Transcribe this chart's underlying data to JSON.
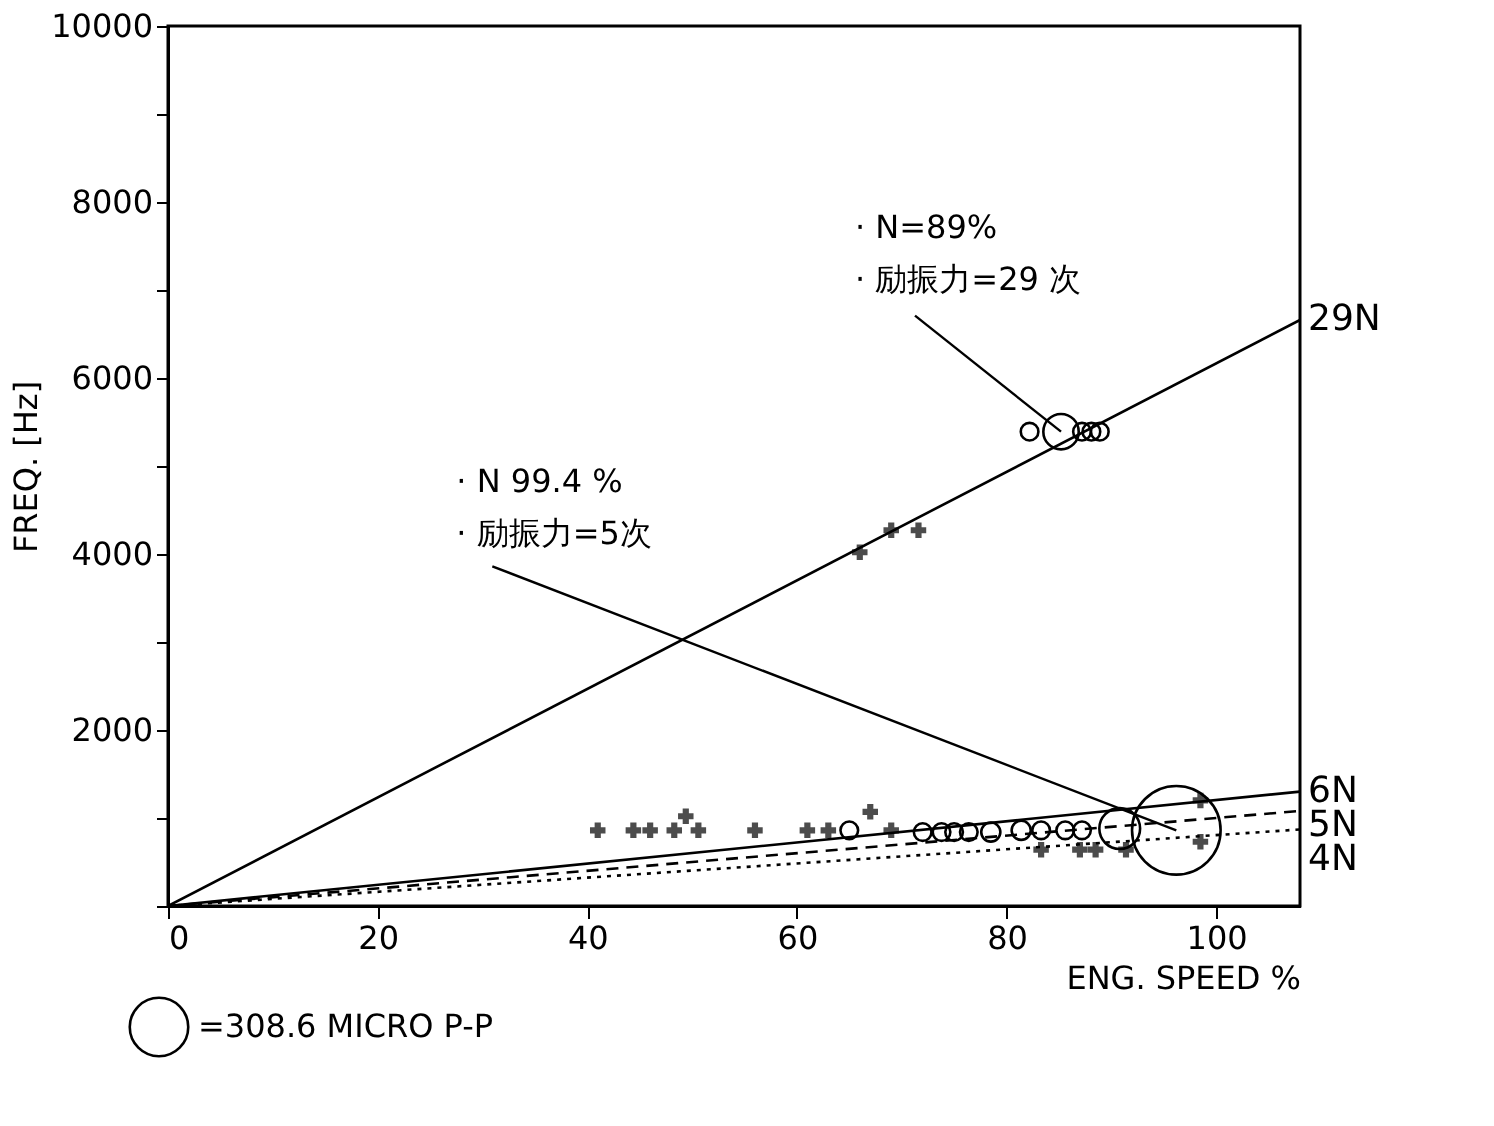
{
  "chart_data": {
    "type": "scatter",
    "xlabel": "ENG. SPEED %",
    "ylabel": "FREQ. [Hz]",
    "xlim": [
      0,
      108
    ],
    "ylim": [
      0,
      10000
    ],
    "xticks": [
      0,
      20,
      40,
      60,
      80,
      100
    ],
    "yticks": [
      {
        "value": 0,
        "label": null
      },
      {
        "value": 1000,
        "label": null
      },
      2000,
      {
        "value": 3000,
        "label": null
      },
      4000,
      {
        "value": 5000,
        "label": null
      },
      6000,
      {
        "value": 7000,
        "label": null
      },
      8000,
      {
        "value": 9000,
        "label": null
      },
      10000
    ],
    "grid": false,
    "size_legend": [
      {
        "value": 308.6,
        "label": "=308.6 MICRO P-P"
      }
    ],
    "series": [
      {
        "name": "29N",
        "type": "line",
        "color": "#000000",
        "line_style": "solid",
        "x": [
          0,
          108
        ],
        "values": [
          0,
          6660
        ]
      },
      {
        "name": "6N",
        "type": "line",
        "color": "#000000",
        "line_style": "solid",
        "x": [
          0,
          108
        ],
        "values": [
          0,
          1300
        ]
      },
      {
        "name": "5N",
        "type": "line",
        "color": "#000000",
        "line_style": "dashed",
        "x": [
          0,
          108
        ],
        "values": [
          0,
          1080
        ]
      },
      {
        "name": "4N",
        "type": "line",
        "color": "#000000",
        "line_style": "dotted",
        "x": [
          0,
          108
        ],
        "values": [
          0,
          870
        ]
      },
      {
        "marker": "cross",
        "color": "#000000",
        "x": [
          41,
          44.4,
          46,
          48.3,
          49.4,
          50.6,
          56,
          61,
          63,
          67,
          69,
          83.3,
          87,
          88.5,
          91.4,
          98.5,
          98.5,
          66,
          69,
          71.6
        ],
        "values": [
          860,
          860,
          860,
          860,
          1020,
          860,
          860,
          860,
          860,
          1070,
          860,
          640,
          640,
          640,
          640,
          730,
          1200,
          4020,
          4270,
          4270
        ]
      },
      {
        "type": "bubble",
        "marker": "circle",
        "color": "#000000",
        "x": [
          65,
          72,
          73.8,
          75,
          76.4,
          78.5,
          81.4,
          83.3,
          85.6,
          87.2,
          90.8,
          96.2,
          82.2,
          85.2,
          87.2,
          88.1,
          88.9
        ],
        "values": [
          860,
          840,
          840,
          840,
          840,
          840,
          860,
          860,
          860,
          860,
          880,
          860,
          5390,
          5390,
          5390,
          5390,
          5390
        ],
        "sizes": [
          28,
          28,
          28,
          28,
          28,
          33,
          33,
          28,
          28,
          28,
          150,
          708,
          28,
          113,
          28,
          28,
          28
        ]
      }
    ],
    "annotations": [
      {
        "text": "· N 99.4 %\n· 励振力=5次",
        "x": 96.2,
        "y": 860
      },
      {
        "text": "· N=89%\n· 励振力=29 次",
        "x": 85.2,
        "y": 5390
      }
    ]
  }
}
